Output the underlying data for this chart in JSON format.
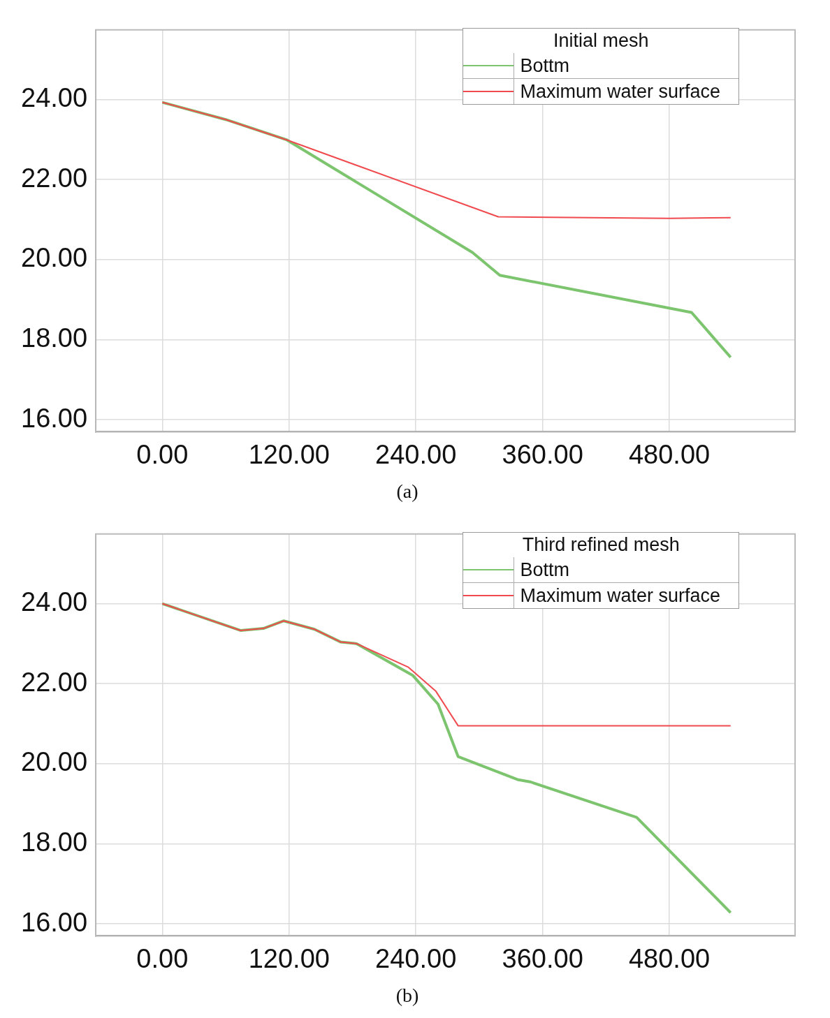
{
  "chart_data": [
    {
      "type": "line",
      "legend_title": "Initial mesh",
      "annotations": [
        "(a)"
      ],
      "xlim": [
        -63,
        599
      ],
      "ylim": [
        15.7,
        25.74
      ],
      "xticks": [
        {
          "value": 0,
          "label": "0.00"
        },
        {
          "value": 120,
          "label": "120.00"
        },
        {
          "value": 240,
          "label": "240.00"
        },
        {
          "value": 360,
          "label": "360.00"
        },
        {
          "value": 480,
          "label": "480.00"
        }
      ],
      "yticks": [
        {
          "value": 16,
          "label": "16.00"
        },
        {
          "value": 18,
          "label": "18.00"
        },
        {
          "value": 20,
          "label": "20.00"
        },
        {
          "value": 22,
          "label": "22.00"
        },
        {
          "value": 24,
          "label": "24.00"
        }
      ],
      "grid": true,
      "legend": "top right",
      "marker": "none",
      "line_style": "solid",
      "series": [
        {
          "name": "Bottm",
          "color": "#7cc46e",
          "x": [
            0,
            60,
            118,
            293.5,
            319.5,
            501,
            538
          ],
          "values": [
            23.93,
            23.5,
            22.99,
            20.18,
            19.61,
            18.68,
            17.56
          ]
        },
        {
          "name": "Maximum water surface",
          "color": "#f04a4f",
          "x": [
            0,
            60,
            118,
            318,
            480,
            538
          ],
          "values": [
            23.93,
            23.5,
            22.99,
            21.07,
            21.03,
            21.05
          ]
        }
      ]
    },
    {
      "type": "line",
      "legend_title": "Third refined mesh",
      "annotations": [
        "(b)"
      ],
      "xlim": [
        -63,
        599
      ],
      "ylim": [
        15.7,
        25.74
      ],
      "xticks": [
        {
          "value": 0,
          "label": "0.00"
        },
        {
          "value": 120,
          "label": "120.00"
        },
        {
          "value": 240,
          "label": "240.00"
        },
        {
          "value": 360,
          "label": "360.00"
        },
        {
          "value": 480,
          "label": "480.00"
        }
      ],
      "yticks": [
        {
          "value": 16,
          "label": "16.00"
        },
        {
          "value": 18,
          "label": "18.00"
        },
        {
          "value": 20,
          "label": "20.00"
        },
        {
          "value": 22,
          "label": "22.00"
        },
        {
          "value": 24,
          "label": "24.00"
        }
      ],
      "grid": true,
      "legend": "top right",
      "marker": "none",
      "line_style": "solid",
      "series": [
        {
          "name": "Bottm",
          "color": "#7cc46e",
          "x": [
            0,
            74,
            95.7,
            115,
            144,
            169,
            184,
            237,
            261,
            280,
            337,
            348,
            449,
            538
          ],
          "values": [
            24.0,
            23.33,
            23.38,
            23.57,
            23.36,
            23.04,
            23.0,
            22.21,
            21.49,
            20.18,
            19.6,
            19.55,
            18.66,
            16.28
          ]
        },
        {
          "name": "Maximum water surface",
          "color": "#f04a4f",
          "x": [
            0,
            74,
            95.7,
            115,
            144,
            169,
            184,
            233,
            259,
            280,
            538
          ],
          "values": [
            24.0,
            23.33,
            23.38,
            23.57,
            23.36,
            23.04,
            23.0,
            22.41,
            21.81,
            20.95,
            20.95
          ]
        }
      ]
    }
  ]
}
